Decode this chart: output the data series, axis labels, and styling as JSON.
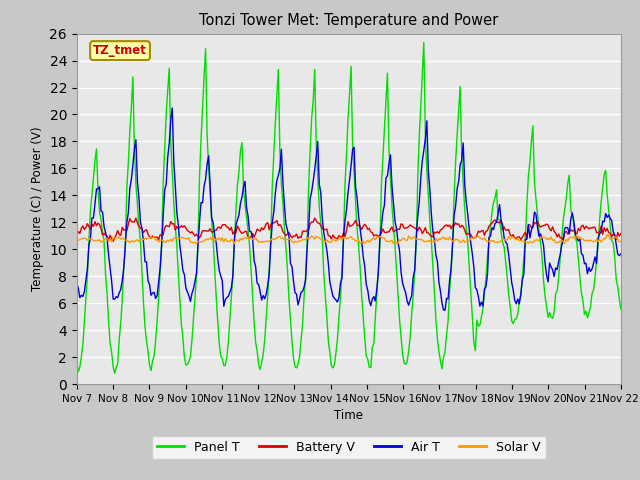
{
  "title": "Tonzi Tower Met: Temperature and Power",
  "ylabel": "Temperature (C) / Power (V)",
  "xlabel": "Time",
  "ylim": [
    0,
    26
  ],
  "yticks": [
    0,
    2,
    4,
    6,
    8,
    10,
    12,
    14,
    16,
    18,
    20,
    22,
    24,
    26
  ],
  "colors": {
    "panel_t": "#00dd00",
    "battery_v": "#dd0000",
    "air_t": "#0000dd",
    "solar_v": "#ff9900"
  },
  "legend_labels": [
    "Panel T",
    "Battery V",
    "Air T",
    "Solar V"
  ],
  "x_tick_labels": [
    "Nov 7",
    "Nov 8",
    "Nov 9",
    "Nov 10",
    "Nov 11",
    "Nov 12",
    "Nov 13",
    "Nov 14",
    "Nov 15",
    "Nov 16",
    "Nov 17",
    "Nov 18",
    "Nov 19",
    "Nov 20",
    "Nov 21",
    "Nov 22"
  ],
  "annotation_text": "TZ_tmet",
  "annotation_color": "#cc0000",
  "annotation_bg": "#ffffaa",
  "fig_facecolor": "#c8c8c8",
  "ax_facecolor": "#e8e8e8"
}
